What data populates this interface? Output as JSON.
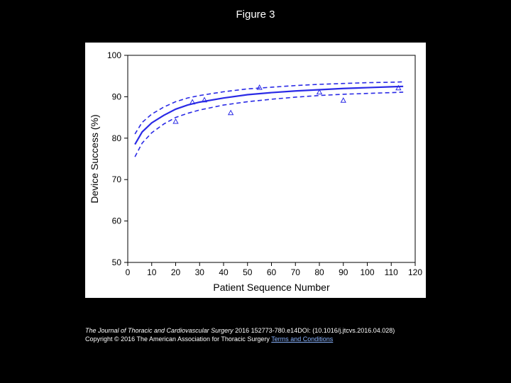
{
  "figure_title": "Figure 3",
  "chart": {
    "type": "line-with-ci",
    "xlabel": "Patient Sequence Number",
    "ylabel": "Device Success (%)",
    "xlim": [
      0,
      120
    ],
    "ylim": [
      50,
      100
    ],
    "xtick_step": 10,
    "ytick_step": 10,
    "xticks": [
      0,
      10,
      20,
      30,
      40,
      50,
      60,
      70,
      80,
      90,
      100,
      110,
      120
    ],
    "yticks": [
      50,
      60,
      70,
      80,
      90,
      100
    ],
    "background_color": "#ffffff",
    "axis_color": "#000000",
    "tick_fontsize": 12,
    "label_fontsize": 14,
    "curve_main": {
      "color": "#2a2ae6",
      "width": 2.2,
      "dash": "none",
      "x": [
        3,
        6,
        10,
        15,
        20,
        25,
        30,
        40,
        50,
        60,
        70,
        80,
        90,
        100,
        110,
        115
      ],
      "y": [
        78.5,
        81.5,
        83.7,
        85.5,
        87.0,
        88.0,
        88.7,
        89.7,
        90.5,
        91.0,
        91.4,
        91.7,
        92.0,
        92.2,
        92.4,
        92.5
      ]
    },
    "curve_upper": {
      "color": "#2a2ae6",
      "width": 1.6,
      "dash": "6,4",
      "x": [
        3,
        6,
        10,
        15,
        20,
        25,
        30,
        40,
        50,
        60,
        70,
        80,
        90,
        100,
        110,
        115
      ],
      "y": [
        81.0,
        83.8,
        85.8,
        87.5,
        88.8,
        89.7,
        90.3,
        91.2,
        91.9,
        92.3,
        92.7,
        93.0,
        93.2,
        93.4,
        93.5,
        93.6
      ]
    },
    "curve_lower": {
      "color": "#2a2ae6",
      "width": 1.6,
      "dash": "6,4",
      "x": [
        3,
        6,
        10,
        15,
        20,
        25,
        30,
        40,
        50,
        60,
        70,
        80,
        90,
        100,
        110,
        115
      ],
      "y": [
        75.5,
        78.8,
        81.3,
        83.4,
        85.0,
        86.0,
        86.8,
        88.0,
        88.8,
        89.4,
        89.9,
        90.3,
        90.6,
        90.8,
        91.0,
        91.1
      ]
    },
    "scatter": {
      "marker": "triangle",
      "color": "#2a2ae6",
      "size": 7,
      "x": [
        20,
        27,
        32,
        43,
        55,
        80,
        90,
        113
      ],
      "y": [
        84.0,
        88.7,
        89.2,
        86.1,
        92.2,
        91.1,
        89.1,
        92.1
      ]
    }
  },
  "caption": {
    "journal": "The Journal of Thoracic and Cardiovascular Surgery",
    "citation": " 2016 152773-780.e14DOI: (10.1016/j.jtcvs.2016.04.028) ",
    "copyright_prefix": "Copyright © 2016 The American Association for Thoracic Surgery ",
    "terms_text": "Terms and Conditions",
    "terms_href": "#"
  }
}
